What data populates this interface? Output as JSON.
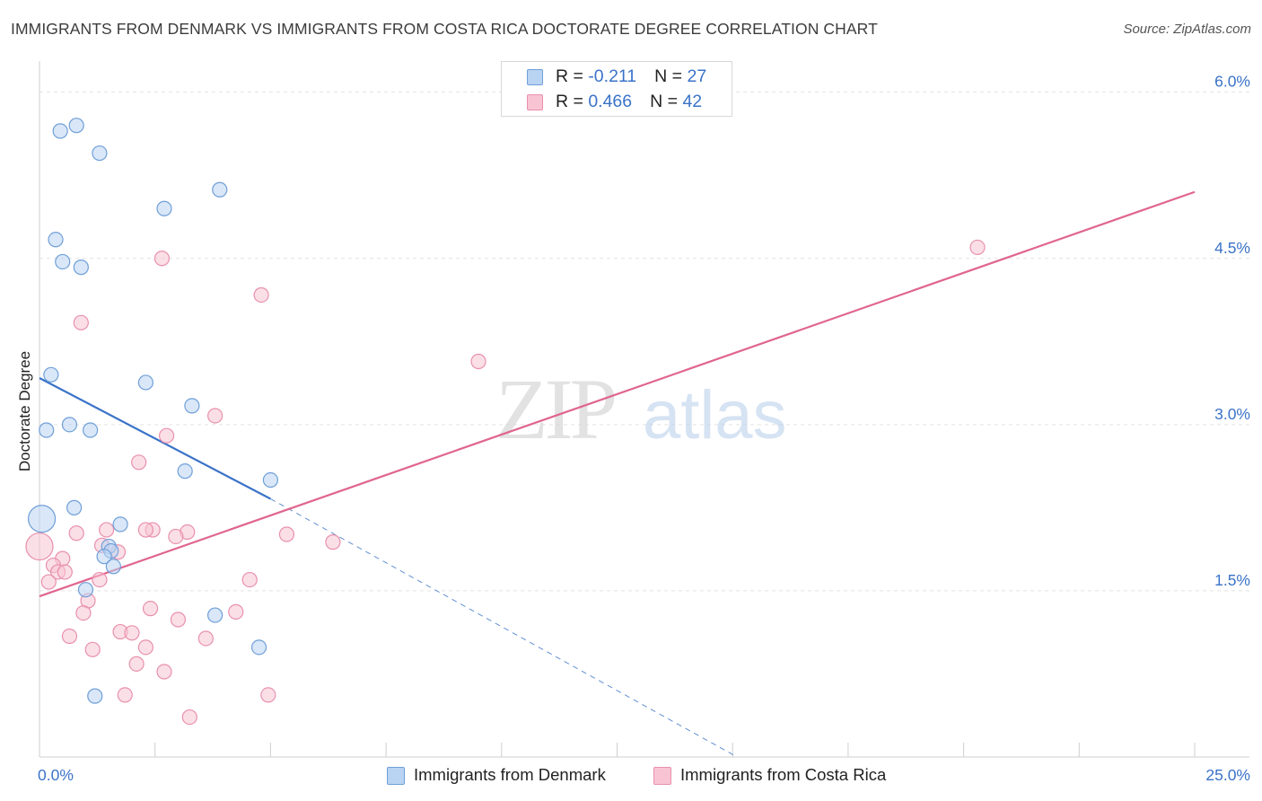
{
  "title": "IMMIGRANTS FROM DENMARK VS IMMIGRANTS FROM COSTA RICA DOCTORATE DEGREE CORRELATION CHART",
  "source": "Source: ZipAtlas.com",
  "watermark": {
    "zip": "ZIP",
    "atlas": "atlas"
  },
  "colors": {
    "blue_fill": "#b9d3f3",
    "blue_stroke": "#6f9fd8",
    "blue_line": "#3b73c8",
    "pink_fill": "#f8c4d4",
    "pink_stroke": "#e890ad",
    "pink_line": "#e0658f",
    "axis_label": "#3b73c8",
    "grid": "#e3e3e3"
  },
  "legend_top": {
    "rows": [
      {
        "r_label": "R = ",
        "r_value": "-0.211",
        "n_label": "N = ",
        "n_value": "27",
        "color": "blue"
      },
      {
        "r_label": "R = ",
        "r_value": "0.466",
        "n_label": "N = ",
        "n_value": "42",
        "color": "pink"
      }
    ]
  },
  "chart_data": {
    "type": "scatter",
    "title": "IMMIGRANTS FROM DENMARK VS IMMIGRANTS FROM COSTA RICA DOCTORATE DEGREE CORRELATION CHART",
    "xlabel": "",
    "ylabel": "Doctorate Degree",
    "xlim": [
      0,
      25
    ],
    "ylim": [
      0,
      6.2
    ],
    "x_tick_labels": [
      {
        "value": 0,
        "label": "0.0%"
      },
      {
        "value": 25,
        "label": "25.0%"
      }
    ],
    "x_minor_ticks": [
      0,
      2.5,
      5,
      7.5,
      10,
      12.5,
      15,
      17.5,
      20,
      22.5,
      25
    ],
    "y_ticks": [
      {
        "value": 1.5,
        "label": "1.5%"
      },
      {
        "value": 3.0,
        "label": "3.0%"
      },
      {
        "value": 4.5,
        "label": "4.5%"
      },
      {
        "value": 6.0,
        "label": "6.0%"
      }
    ],
    "grid": true,
    "legend_position": "bottom",
    "series": [
      {
        "name": "Immigrants from Denmark",
        "color": "blue",
        "points": [
          {
            "x": 0.45,
            "y": 5.65
          },
          {
            "x": 0.8,
            "y": 5.7
          },
          {
            "x": 1.3,
            "y": 5.45
          },
          {
            "x": 2.7,
            "y": 4.95
          },
          {
            "x": 3.9,
            "y": 5.12
          },
          {
            "x": 0.35,
            "y": 4.67
          },
          {
            "x": 0.5,
            "y": 4.47
          },
          {
            "x": 0.9,
            "y": 4.42
          },
          {
            "x": 0.25,
            "y": 3.45
          },
          {
            "x": 2.3,
            "y": 3.38
          },
          {
            "x": 3.3,
            "y": 3.17
          },
          {
            "x": 0.15,
            "y": 2.95
          },
          {
            "x": 0.65,
            "y": 3.0
          },
          {
            "x": 1.1,
            "y": 2.95
          },
          {
            "x": 3.15,
            "y": 2.58
          },
          {
            "x": 5.0,
            "y": 2.5
          },
          {
            "x": 0.75,
            "y": 2.25
          },
          {
            "x": 0.05,
            "y": 2.15,
            "size": "large"
          },
          {
            "x": 1.75,
            "y": 2.1
          },
          {
            "x": 1.5,
            "y": 1.9
          },
          {
            "x": 1.55,
            "y": 1.86
          },
          {
            "x": 1.4,
            "y": 1.81
          },
          {
            "x": 1.6,
            "y": 1.72
          },
          {
            "x": 1.0,
            "y": 1.51
          },
          {
            "x": 3.8,
            "y": 1.28
          },
          {
            "x": 4.75,
            "y": 0.99
          },
          {
            "x": 1.2,
            "y": 0.55
          }
        ]
      },
      {
        "name": "Immigrants from Costa Rica",
        "color": "pink",
        "points": [
          {
            "x": 2.65,
            "y": 4.5
          },
          {
            "x": 4.8,
            "y": 4.17
          },
          {
            "x": 0.9,
            "y": 3.92
          },
          {
            "x": 9.5,
            "y": 3.57
          },
          {
            "x": 20.3,
            "y": 4.6
          },
          {
            "x": 3.8,
            "y": 3.08
          },
          {
            "x": 2.75,
            "y": 2.9
          },
          {
            "x": 2.15,
            "y": 2.66
          },
          {
            "x": 0.0,
            "y": 1.9,
            "size": "large"
          },
          {
            "x": 0.8,
            "y": 2.02
          },
          {
            "x": 1.45,
            "y": 2.05
          },
          {
            "x": 2.45,
            "y": 2.05
          },
          {
            "x": 3.2,
            "y": 2.03
          },
          {
            "x": 2.95,
            "y": 1.99
          },
          {
            "x": 5.35,
            "y": 2.01
          },
          {
            "x": 6.35,
            "y": 1.94
          },
          {
            "x": 1.35,
            "y": 1.91
          },
          {
            "x": 1.7,
            "y": 1.85
          },
          {
            "x": 0.5,
            "y": 1.79
          },
          {
            "x": 0.3,
            "y": 1.73
          },
          {
            "x": 0.4,
            "y": 1.67
          },
          {
            "x": 0.55,
            "y": 1.67
          },
          {
            "x": 0.2,
            "y": 1.58
          },
          {
            "x": 1.3,
            "y": 1.6
          },
          {
            "x": 4.55,
            "y": 1.6
          },
          {
            "x": 1.05,
            "y": 1.41
          },
          {
            "x": 2.4,
            "y": 1.34
          },
          {
            "x": 0.95,
            "y": 1.3
          },
          {
            "x": 4.25,
            "y": 1.31
          },
          {
            "x": 3.0,
            "y": 1.24
          },
          {
            "x": 0.65,
            "y": 1.09
          },
          {
            "x": 1.75,
            "y": 1.13
          },
          {
            "x": 2.0,
            "y": 1.12
          },
          {
            "x": 3.6,
            "y": 1.07
          },
          {
            "x": 1.15,
            "y": 0.97
          },
          {
            "x": 2.3,
            "y": 0.99
          },
          {
            "x": 2.1,
            "y": 0.84
          },
          {
            "x": 2.7,
            "y": 0.77
          },
          {
            "x": 1.85,
            "y": 0.56
          },
          {
            "x": 4.95,
            "y": 0.56
          },
          {
            "x": 3.25,
            "y": 0.36
          },
          {
            "x": 2.3,
            "y": 2.05
          }
        ]
      }
    ],
    "trend_lines": [
      {
        "series": "Immigrants from Denmark",
        "solid": {
          "x0": 0.0,
          "y0": 3.42,
          "x1": 5.0,
          "y1": 2.33
        },
        "dashed": {
          "x0": 5.0,
          "y0": 2.33,
          "x1": 15.1,
          "y1": 0.0
        }
      },
      {
        "series": "Immigrants from Costa Rica",
        "solid": {
          "x0": 0.0,
          "y0": 1.45,
          "x1": 25.0,
          "y1": 5.1
        }
      }
    ]
  }
}
